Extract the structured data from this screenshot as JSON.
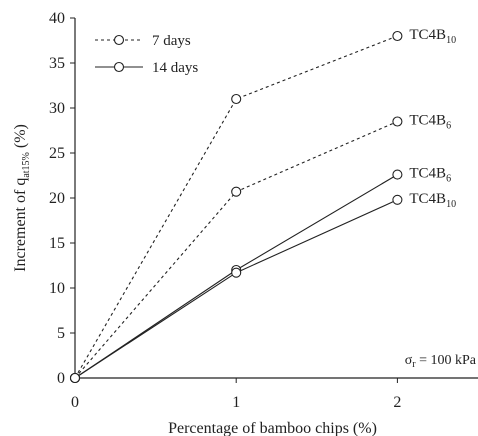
{
  "chart_data": {
    "type": "line",
    "xlabel": "Percentage of bamboo chips (%)",
    "ylabel": "Increment of q",
    "ylabel_sub": "at15%",
    "ylabel_suffix": " (%)",
    "x_ticks": [
      0,
      1,
      2
    ],
    "y_ticks": [
      0,
      5,
      10,
      15,
      20,
      25,
      30,
      35,
      40
    ],
    "xlim": [
      0,
      2.5
    ],
    "ylim": [
      0,
      40
    ],
    "grid": false,
    "legend_position": "top-left",
    "legend": [
      {
        "label": "7 days",
        "style": "dashed"
      },
      {
        "label": "14 days",
        "style": "solid"
      }
    ],
    "series": [
      {
        "group": "7 days",
        "style": "dashed",
        "label": "TC4B",
        "label_sub": "10",
        "x": [
          0,
          1,
          2
        ],
        "y": [
          0,
          31.0,
          38.0
        ]
      },
      {
        "group": "7 days",
        "style": "dashed",
        "label": "TC4B",
        "label_sub": "6",
        "x": [
          0,
          1,
          2
        ],
        "y": [
          0,
          20.7,
          28.5
        ]
      },
      {
        "group": "14 days",
        "style": "solid",
        "label": "TC4B",
        "label_sub": "6",
        "x": [
          0,
          1,
          2
        ],
        "y": [
          0,
          12.0,
          22.6
        ]
      },
      {
        "group": "14 days",
        "style": "solid",
        "label": "TC4B",
        "label_sub": "10",
        "x": [
          0,
          1,
          2
        ],
        "y": [
          0,
          11.7,
          19.8
        ]
      }
    ],
    "annotation": {
      "symbol": "σ",
      "sub": "r",
      "text": " = 100 kPa"
    }
  },
  "colors": {
    "line": "#222222",
    "marker_fill": "#ffffff"
  }
}
